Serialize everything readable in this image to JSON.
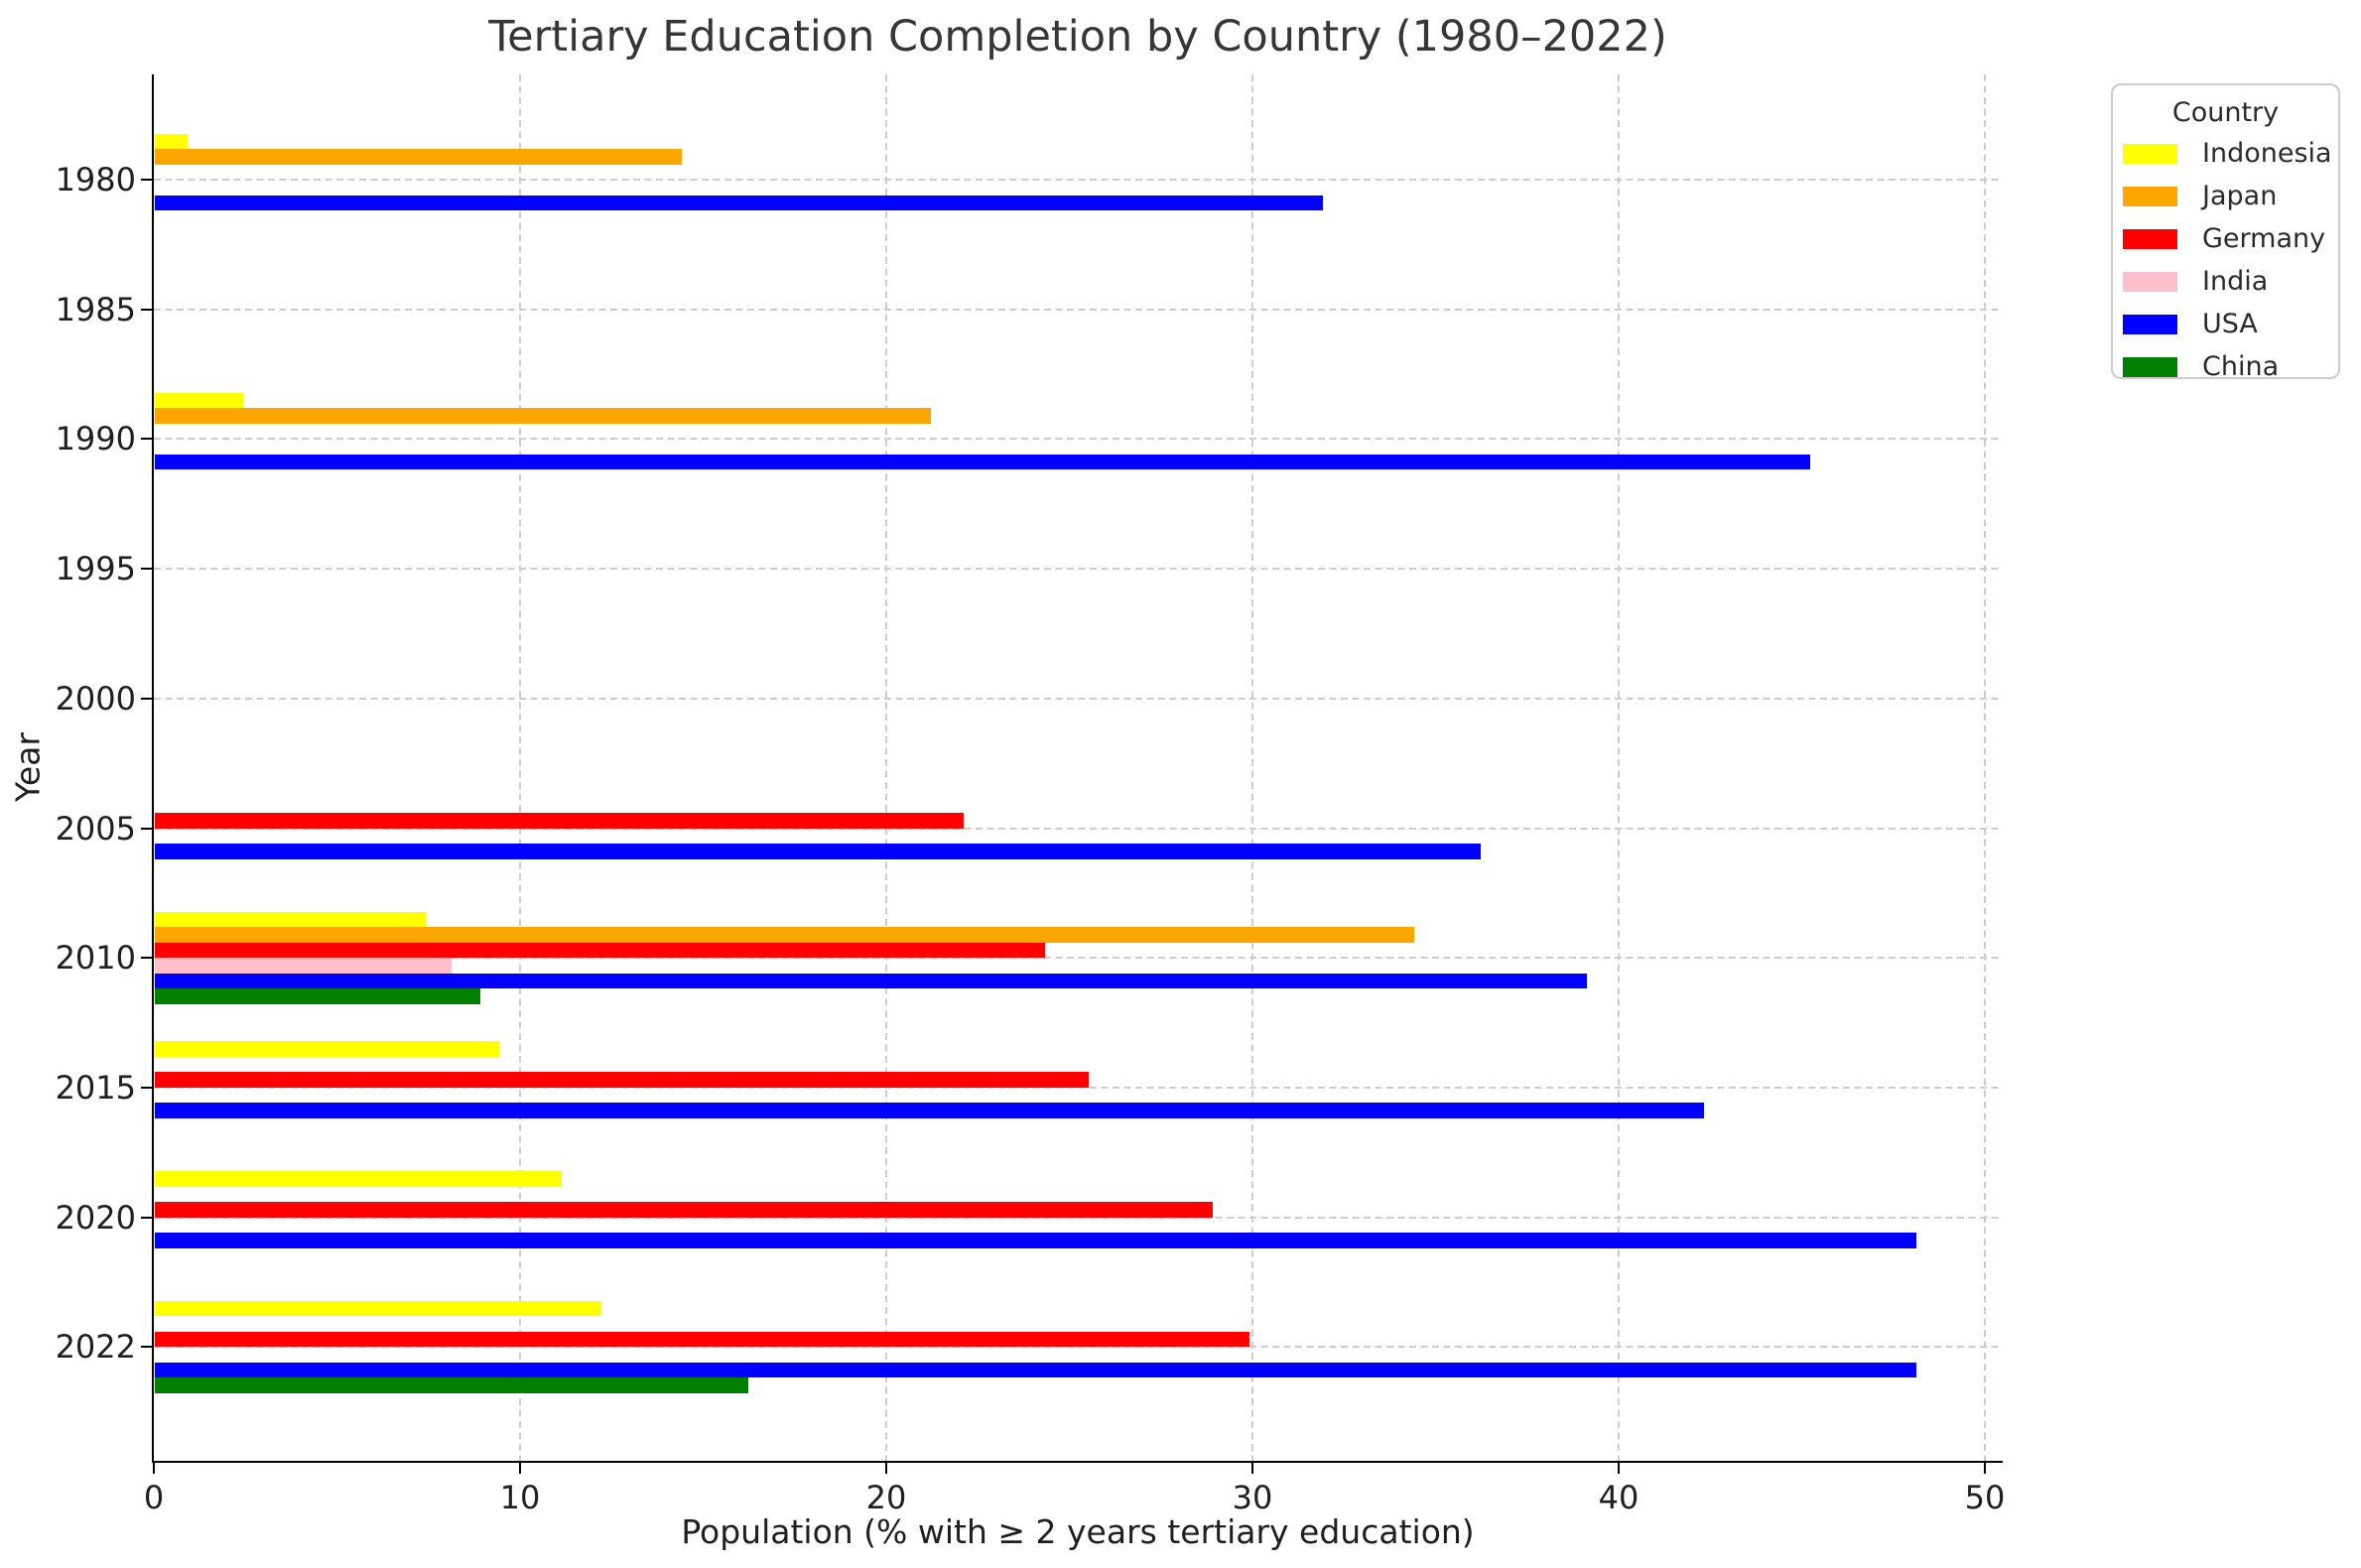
{
  "chart_data": {
    "type": "bar",
    "orientation": "horizontal",
    "title": "Tertiary Education Completion by Country (1980–2022)",
    "xlabel": "Population (% with ≥ 2 years tertiary education)",
    "ylabel": "Year",
    "xlim": [
      0,
      50.6
    ],
    "xticks": [
      0,
      10,
      20,
      30,
      40,
      50
    ],
    "categories": [
      "1980",
      "1985",
      "1990",
      "1995",
      "2000",
      "2005",
      "2010",
      "2015",
      "2020",
      "2022"
    ],
    "grid": true,
    "legend": {
      "title": "Country",
      "position": "upper-right-outside"
    },
    "series": [
      {
        "name": "Indonesia",
        "color": "#FFFF00",
        "values": [
          0.9,
          null,
          2.4,
          null,
          null,
          null,
          7.4,
          9.4,
          11.1,
          12.2
        ]
      },
      {
        "name": "Japan",
        "color": "#FFA500",
        "values": [
          14.4,
          null,
          21.2,
          null,
          null,
          null,
          34.4,
          null,
          null,
          null
        ]
      },
      {
        "name": "Germany",
        "color": "#FF0000",
        "values": [
          null,
          null,
          null,
          null,
          null,
          22.1,
          24.3,
          25.5,
          28.9,
          29.9
        ]
      },
      {
        "name": "India",
        "color": "#FFC0CB",
        "values": [
          null,
          null,
          null,
          null,
          null,
          null,
          8.1,
          null,
          null,
          null
        ]
      },
      {
        "name": "USA",
        "color": "#0000FF",
        "values": [
          31.9,
          null,
          45.2,
          null,
          null,
          36.2,
          39.1,
          42.3,
          48.1,
          48.1
        ]
      },
      {
        "name": "China",
        "color": "#008000",
        "values": [
          null,
          null,
          null,
          null,
          null,
          null,
          8.9,
          null,
          null,
          16.2
        ]
      }
    ]
  }
}
